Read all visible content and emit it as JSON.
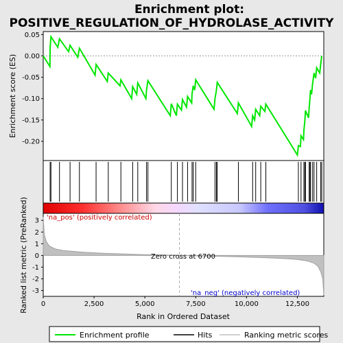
{
  "chart_data": {
    "type": "line",
    "title": "Enrichment plot: POSITIVE_REGULATION_OF_HYDROLASE_ACTIVITY",
    "xlabel": "Rank in Ordered Dataset",
    "ylabel_top": "Enrichment score (ES)",
    "ylabel_bottom": "Ranked list metric (PreRanked)",
    "xlim": [
      0,
      13800
    ],
    "ylim_top": [
      -0.245,
      0.057
    ],
    "ylim_bottom": [
      -3.5,
      3.6
    ],
    "x_ticks": [
      0,
      2500,
      5000,
      7500,
      10000,
      12500
    ],
    "x_tick_labels": [
      "0",
      "2,500",
      "5,000",
      "7,500",
      "10,000",
      "12,500"
    ],
    "y_ticks_top": [
      0.05,
      0.0,
      -0.05,
      -0.1,
      -0.15,
      -0.2
    ],
    "y_tick_labels_top": [
      "0.05",
      "0.00",
      "-0.05",
      "-0.10",
      "-0.15",
      "-0.20"
    ],
    "y_ticks_bottom": [
      3,
      2,
      1,
      0,
      -1,
      -2,
      -3
    ],
    "y_tick_labels_bottom": [
      "3",
      "2",
      "1",
      "0",
      "-1",
      "-2",
      "-3"
    ],
    "enrichment_profile": [
      [
        0,
        0.0
      ],
      [
        330,
        -0.025
      ],
      [
        340,
        0.02
      ],
      [
        380,
        0.045
      ],
      [
        720,
        0.02
      ],
      [
        800,
        0.04
      ],
      [
        1250,
        0.01
      ],
      [
        1320,
        0.025
      ],
      [
        1700,
        -0.003
      ],
      [
        1780,
        0.018
      ],
      [
        2550,
        -0.045
      ],
      [
        2600,
        -0.02
      ],
      [
        3150,
        -0.06
      ],
      [
        3200,
        -0.04
      ],
      [
        3780,
        -0.07
      ],
      [
        3820,
        -0.056
      ],
      [
        4350,
        -0.1
      ],
      [
        4400,
        -0.072
      ],
      [
        4600,
        -0.09
      ],
      [
        4650,
        -0.063
      ],
      [
        5050,
        -0.1
      ],
      [
        5080,
        -0.08
      ],
      [
        5150,
        -0.058
      ],
      [
        6250,
        -0.14
      ],
      [
        6300,
        -0.112
      ],
      [
        6550,
        -0.14
      ],
      [
        6600,
        -0.113
      ],
      [
        6800,
        -0.127
      ],
      [
        6850,
        -0.102
      ],
      [
        7050,
        -0.12
      ],
      [
        7100,
        -0.095
      ],
      [
        7300,
        -0.11
      ],
      [
        7320,
        -0.09
      ],
      [
        7380,
        -0.07
      ],
      [
        7450,
        -0.08
      ],
      [
        7500,
        -0.056
      ],
      [
        8400,
        -0.125
      ],
      [
        8450,
        -0.1
      ],
      [
        8520,
        -0.08
      ],
      [
        8560,
        -0.062
      ],
      [
        9550,
        -0.135
      ],
      [
        9600,
        -0.11
      ],
      [
        10250,
        -0.165
      ],
      [
        10300,
        -0.14
      ],
      [
        10400,
        -0.15
      ],
      [
        10450,
        -0.125
      ],
      [
        10650,
        -0.14
      ],
      [
        10700,
        -0.118
      ],
      [
        10900,
        -0.13
      ],
      [
        10950,
        -0.113
      ],
      [
        12500,
        -0.232
      ],
      [
        12550,
        -0.21
      ],
      [
        12650,
        -0.212
      ],
      [
        12680,
        -0.187
      ],
      [
        12800,
        -0.196
      ],
      [
        12820,
        -0.175
      ],
      [
        12870,
        -0.152
      ],
      [
        12900,
        -0.128
      ],
      [
        13050,
        -0.145
      ],
      [
        13080,
        -0.122
      ],
      [
        13120,
        -0.1
      ],
      [
        13150,
        -0.08
      ],
      [
        13200,
        -0.09
      ],
      [
        13250,
        -0.065
      ],
      [
        13320,
        -0.04
      ],
      [
        13400,
        -0.052
      ],
      [
        13450,
        -0.028
      ],
      [
        13600,
        -0.04
      ],
      [
        13650,
        -0.018
      ],
      [
        13700,
        0.0
      ]
    ],
    "hits": [
      340,
      380,
      800,
      1320,
      1780,
      2600,
      3200,
      3820,
      4400,
      4650,
      5080,
      5150,
      6300,
      6600,
      6850,
      7100,
      7320,
      7380,
      7500,
      8450,
      8520,
      8560,
      9600,
      10300,
      10450,
      10700,
      10950,
      12550,
      12680,
      12820,
      12870,
      12900,
      13080,
      13120,
      13150,
      13250,
      13320,
      13450,
      13650,
      13700
    ],
    "zero_cross_rank": 6700,
    "metric_profile": [
      [
        0,
        3.3
      ],
      [
        50,
        1.8
      ],
      [
        150,
        1.2
      ],
      [
        300,
        0.8
      ],
      [
        600,
        0.55
      ],
      [
        1000,
        0.42
      ],
      [
        2000,
        0.27
      ],
      [
        3000,
        0.18
      ],
      [
        4000,
        0.12
      ],
      [
        5000,
        0.07
      ],
      [
        6000,
        0.03
      ],
      [
        6700,
        0.0
      ],
      [
        8000,
        -0.05
      ],
      [
        9000,
        -0.09
      ],
      [
        10000,
        -0.14
      ],
      [
        11000,
        -0.2
      ],
      [
        12000,
        -0.28
      ],
      [
        12500,
        -0.35
      ],
      [
        13000,
        -0.48
      ],
      [
        13300,
        -0.65
      ],
      [
        13500,
        -0.9
      ],
      [
        13650,
        -1.4
      ],
      [
        13750,
        -2.0
      ],
      [
        13800,
        -3.4
      ]
    ],
    "zero_cross_label": "Zero cross at 6700",
    "pos_label": "'na_pos' (positively correlated)",
    "neg_label": "'na_neg' (negatively correlated)",
    "legend": [
      "Enrichment profile",
      "Hits",
      "Ranking metric scores"
    ],
    "colors": {
      "profile": "#00e600",
      "hits": "#000000",
      "metric_line": "#c0c0c0",
      "pos_text": "#cc0000",
      "neg_text": "#0000cc",
      "zero_line": "#aaaaaa"
    }
  }
}
